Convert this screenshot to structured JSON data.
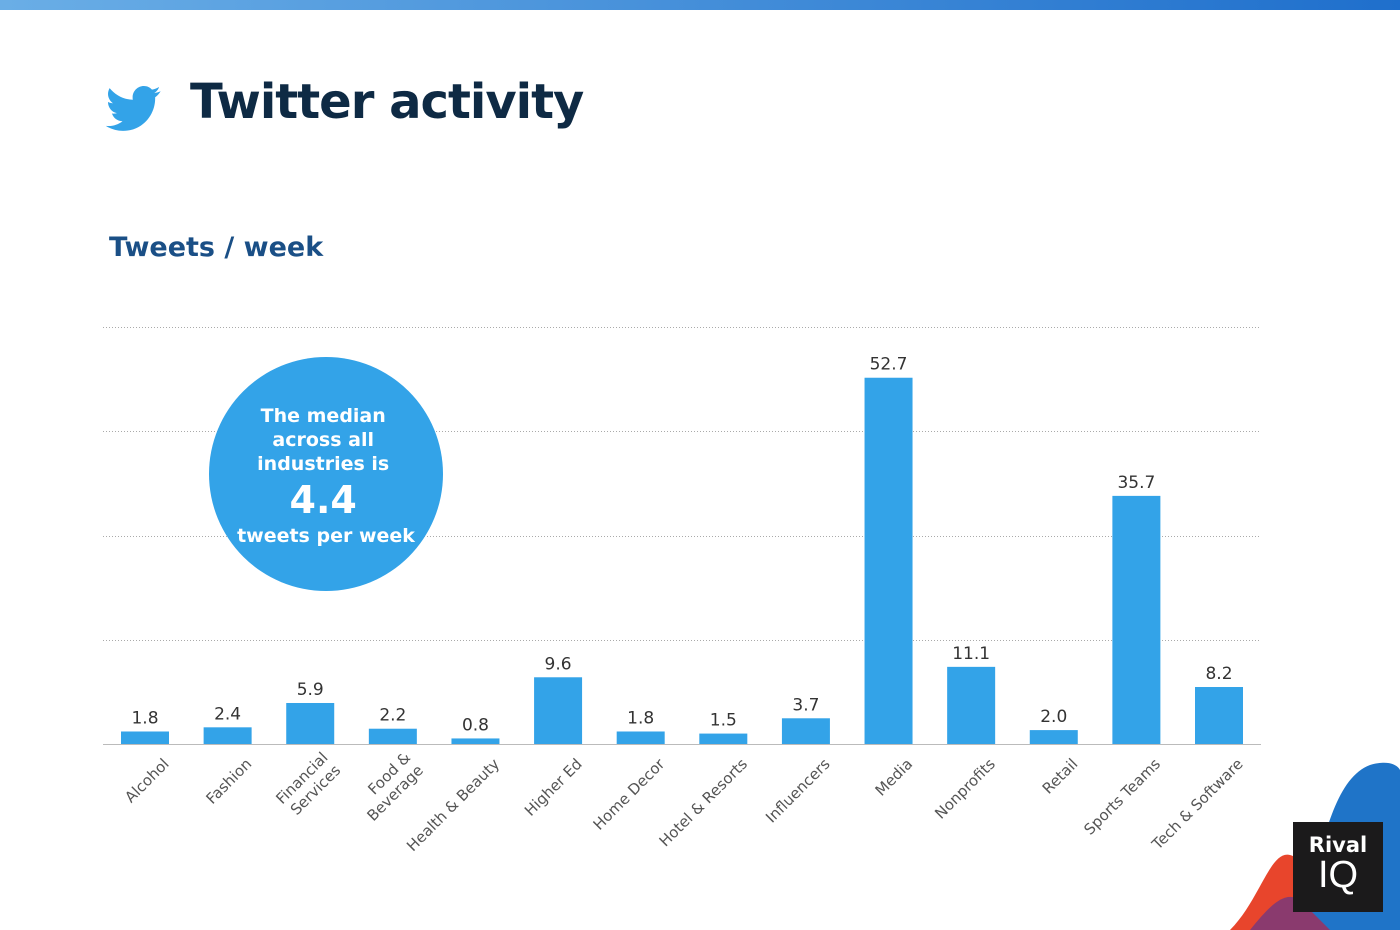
{
  "header": {
    "title": "Twitter activity",
    "icon": "twitter-bird-icon"
  },
  "colors": {
    "bar": "#33a3e8",
    "title": "#0e2a44",
    "subtitle": "#1a4f86",
    "bubble": "#33a3e8"
  },
  "callout": {
    "line1": "The median",
    "line2": "across all",
    "line3": "industries is",
    "value": "4.4",
    "line4": "tweets per week"
  },
  "brand": {
    "top": "Rival",
    "bottom": "IQ"
  },
  "chart_data": {
    "type": "bar",
    "title": "Tweets / week",
    "xlabel": "",
    "ylabel": "",
    "ylim": [
      0,
      60
    ],
    "grid": true,
    "gridlines": [
      15,
      30,
      45,
      60
    ],
    "categories": [
      "Alcohol",
      "Fashion",
      "Financial Services",
      "Food & Beverage",
      "Health & Beauty",
      "Higher Ed",
      "Home Decor",
      "Hotel & Resorts",
      "Influencers",
      "Media",
      "Nonprofits",
      "Retail",
      "Sports Teams",
      "Tech & Software"
    ],
    "category_lines": [
      [
        "Alcohol"
      ],
      [
        "Fashion"
      ],
      [
        "Financial",
        "Services"
      ],
      [
        "Food &",
        "Beverage"
      ],
      [
        "Health & Beauty"
      ],
      [
        "Higher Ed"
      ],
      [
        "Home Decor"
      ],
      [
        "Hotel & Resorts"
      ],
      [
        "Influencers"
      ],
      [
        "Media"
      ],
      [
        "Nonprofits"
      ],
      [
        "Retail"
      ],
      [
        "Sports Teams"
      ],
      [
        "Tech & Software"
      ]
    ],
    "values": [
      1.8,
      2.4,
      5.9,
      2.2,
      0.8,
      9.6,
      1.8,
      1.5,
      3.7,
      52.7,
      11.1,
      2.0,
      35.7,
      8.2
    ],
    "value_labels": [
      "1.8",
      "2.4",
      "5.9",
      "2.2",
      "0.8",
      "9.6",
      "1.8",
      "1.5",
      "3.7",
      "52.7",
      "11.1",
      "2.0",
      "35.7",
      "8.2"
    ]
  }
}
